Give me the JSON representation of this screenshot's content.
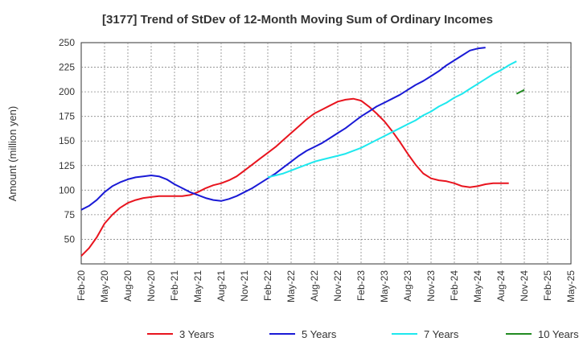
{
  "chart_data": {
    "type": "line",
    "title": "[3177]  Trend of StDev of 12-Month Moving Sum of Ordinary Incomes",
    "ylabel": "Amount (million yen)",
    "xlabel": "",
    "ylim": [
      25,
      250
    ],
    "yticks": [
      50,
      75,
      100,
      125,
      150,
      175,
      200,
      225,
      250
    ],
    "x_start": "Feb-20",
    "xtick_labels": [
      "Feb-20",
      "May-20",
      "Aug-20",
      "Nov-20",
      "Feb-21",
      "May-21",
      "Aug-21",
      "Nov-21",
      "Feb-22",
      "May-22",
      "Aug-22",
      "Nov-22",
      "Feb-23",
      "May-23",
      "Aug-23",
      "Nov-23",
      "Feb-24",
      "May-24",
      "Aug-24",
      "Nov-24",
      "Feb-25",
      "May-25"
    ],
    "grid": true,
    "legend_position": "bottom",
    "series": [
      {
        "name": "3 Years",
        "color": "#e8141e",
        "start_index": 0,
        "values": [
          33,
          41,
          52,
          66,
          75,
          82,
          87,
          90,
          92,
          93,
          94,
          94,
          94,
          94,
          95,
          98,
          102,
          105,
          107,
          110,
          114,
          120,
          126,
          132,
          138,
          144,
          151,
          158,
          165,
          172,
          178,
          182,
          186,
          190,
          192,
          193,
          191,
          185,
          178,
          170,
          160,
          149,
          137,
          126,
          117,
          112,
          110,
          109,
          107,
          104,
          103,
          104,
          106,
          107,
          107,
          107
        ]
      },
      {
        "name": "5 Years",
        "color": "#1a1ad6",
        "start_index": 0,
        "values": [
          80,
          84,
          90,
          98,
          104,
          108,
          111,
          113,
          114,
          115,
          114,
          111,
          106,
          102,
          98,
          95,
          92,
          90,
          89,
          91,
          94,
          98,
          102,
          107,
          112,
          117,
          123,
          129,
          135,
          140,
          144,
          148,
          153,
          158,
          163,
          169,
          175,
          180,
          185,
          189,
          193,
          197,
          202,
          207,
          211,
          216,
          221,
          227,
          232,
          237,
          242,
          244,
          245
        ]
      },
      {
        "name": "7 Years",
        "color": "#1ee8ee",
        "start_index": 24,
        "values": [
          113,
          115,
          117,
          120,
          123,
          126,
          129,
          131,
          133,
          135,
          137,
          140,
          143,
          147,
          151,
          155,
          159,
          163,
          167,
          171,
          176,
          180,
          185,
          189,
          194,
          198,
          203,
          208,
          213,
          218,
          222,
          227,
          231
        ]
      },
      {
        "name": "10 Years",
        "color": "#228b22",
        "start_index": 56,
        "values": [
          198,
          202
        ]
      }
    ]
  }
}
